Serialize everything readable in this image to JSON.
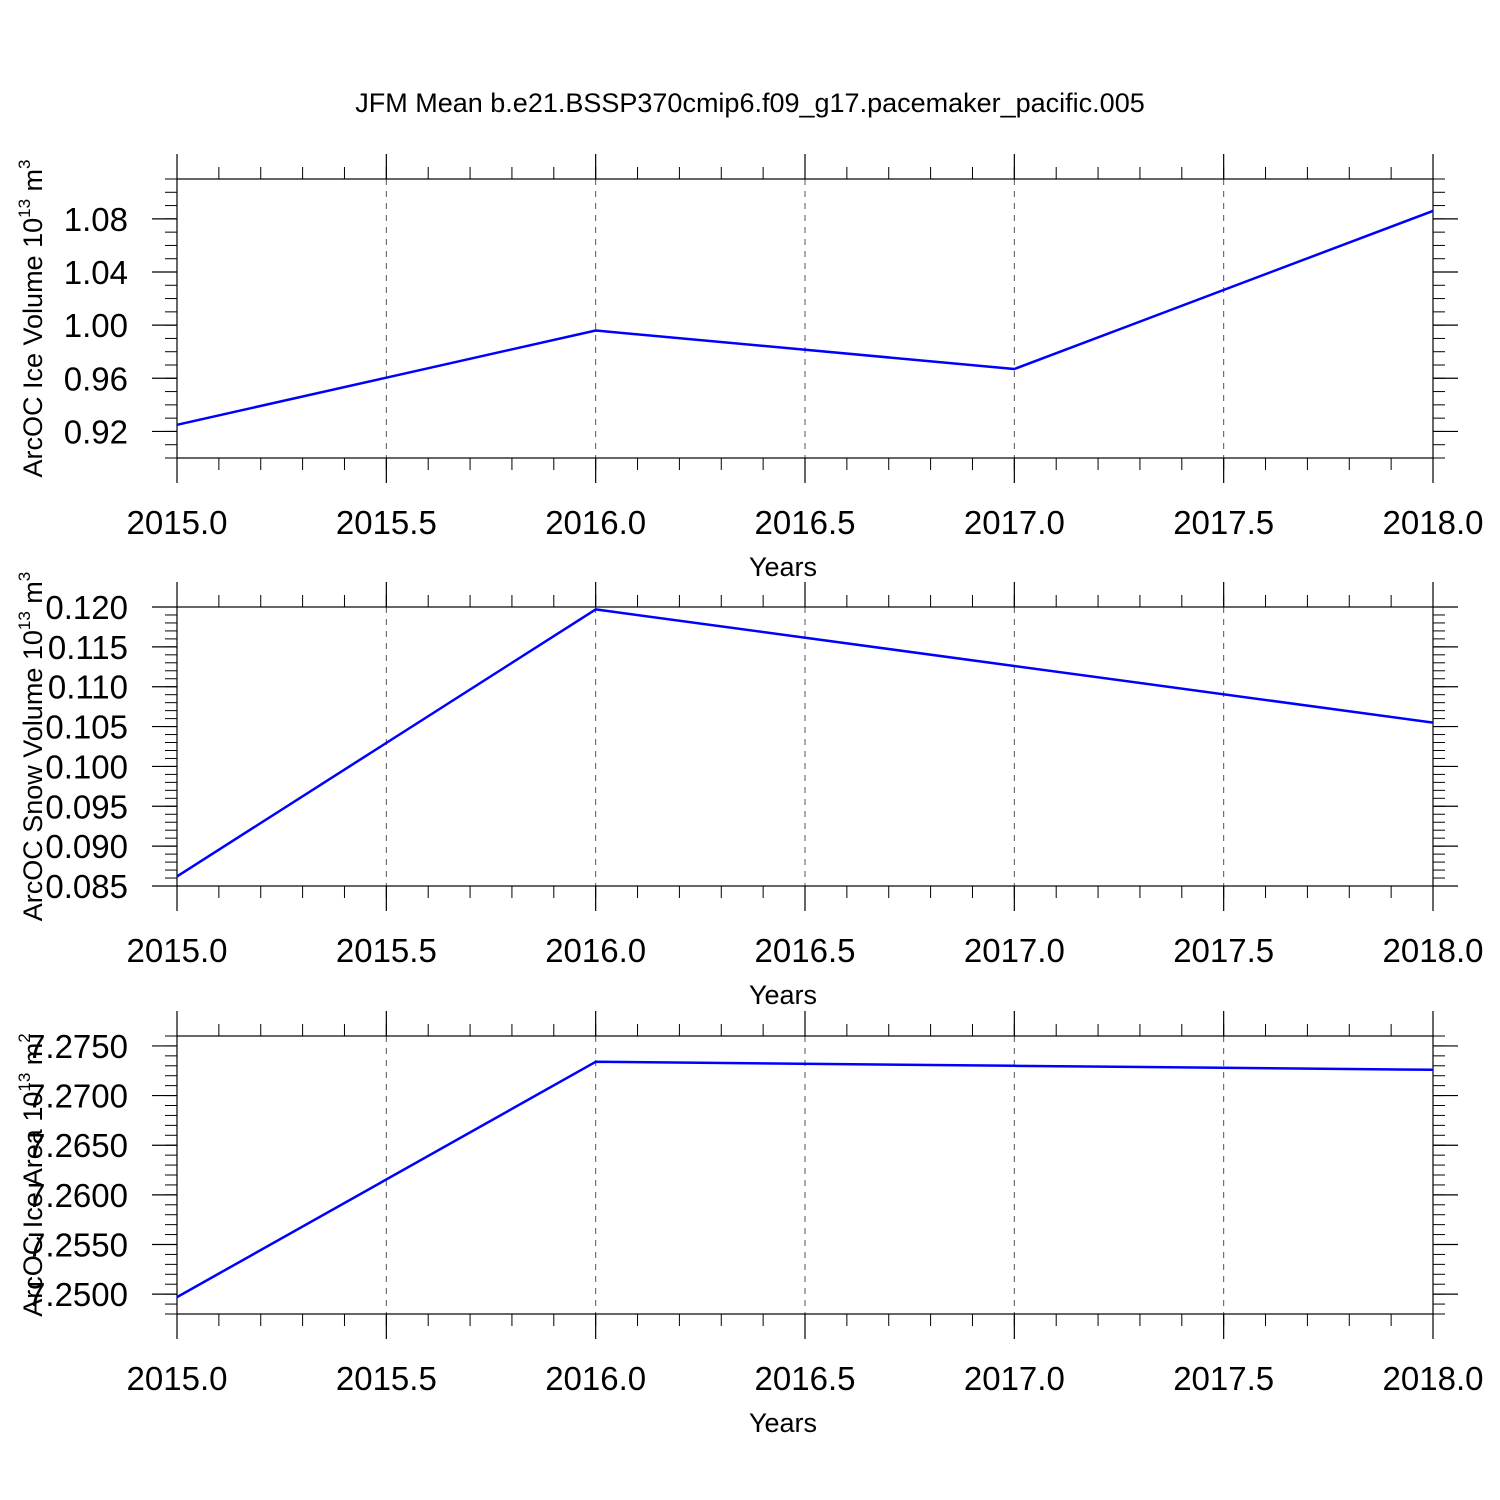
{
  "title": "JFM Mean b.e21.BSSP370cmip6.f09_g17.pacemaker_pacific.005",
  "colors": {
    "line": "#0000ff",
    "axis": "#000000",
    "grid": "#555555"
  },
  "chart_data": [
    {
      "type": "line",
      "xlabel": "Years",
      "ylabel": "ArcOC Ice Volume 10",
      "ylabel_sup1": "13",
      "ylabel_unit": " m",
      "ylabel_sup2": "3",
      "x": [
        2015,
        2016,
        2017,
        2018
      ],
      "values": [
        0.925,
        0.996,
        0.967,
        1.086
      ],
      "xlim": [
        2015,
        2018
      ],
      "ylim": [
        0.9,
        1.11
      ],
      "xticks": [
        2015.0,
        2015.5,
        2016.0,
        2016.5,
        2017.0,
        2017.5,
        2018.0
      ],
      "xtick_labels": [
        "2015.0",
        "2015.5",
        "2016.0",
        "2016.5",
        "2017.0",
        "2017.5",
        "2018.0"
      ],
      "yticks": [
        0.92,
        0.96,
        1.0,
        1.04,
        1.08
      ],
      "ytick_labels": [
        "0.92",
        "0.96",
        "1.00",
        "1.04",
        "1.08"
      ],
      "yminor_step": 0.01,
      "grid": "vertical dashed"
    },
    {
      "type": "line",
      "xlabel": "Years",
      "ylabel": "ArcOC Snow Volume 10",
      "ylabel_sup1": "13",
      "ylabel_unit": " m",
      "ylabel_sup2": "3",
      "x": [
        2015,
        2016,
        2017,
        2018
      ],
      "values": [
        0.0862,
        0.1197,
        0.1126,
        0.1055
      ],
      "xlim": [
        2015,
        2018
      ],
      "ylim": [
        0.085,
        0.12
      ],
      "xticks": [
        2015.0,
        2015.5,
        2016.0,
        2016.5,
        2017.0,
        2017.5,
        2018.0
      ],
      "xtick_labels": [
        "2015.0",
        "2015.5",
        "2016.0",
        "2016.5",
        "2017.0",
        "2017.5",
        "2018.0"
      ],
      "yticks": [
        0.085,
        0.09,
        0.095,
        0.1,
        0.105,
        0.11,
        0.115,
        0.12
      ],
      "ytick_labels": [
        "0.085",
        "0.090",
        "0.095",
        "0.100",
        "0.105",
        "0.110",
        "0.115",
        "0.120"
      ],
      "yminor_step": 0.001,
      "grid": "vertical dashed"
    },
    {
      "type": "line",
      "xlabel": "Years",
      "ylabel": "ArcOC Ice Area 10",
      "ylabel_sup1": "13",
      "ylabel_unit": " m",
      "ylabel_sup2": "2",
      "x": [
        2015,
        2016,
        2017,
        2018
      ],
      "values": [
        7.2497,
        7.2734,
        7.273,
        7.2726
      ],
      "xlim": [
        2015,
        2018
      ],
      "ylim": [
        7.248,
        7.276
      ],
      "xticks": [
        2015.0,
        2015.5,
        2016.0,
        2016.5,
        2017.0,
        2017.5,
        2018.0
      ],
      "xtick_labels": [
        "2015.0",
        "2015.5",
        "2016.0",
        "2016.5",
        "2017.0",
        "2017.5",
        "2018.0"
      ],
      "yticks": [
        7.25,
        7.255,
        7.26,
        7.265,
        7.27,
        7.275
      ],
      "ytick_labels": [
        "7.2500",
        "7.2550",
        "7.2600",
        "7.2650",
        "7.2700",
        "7.2750"
      ],
      "yminor_step": 0.001,
      "grid": "vertical dashed"
    }
  ]
}
